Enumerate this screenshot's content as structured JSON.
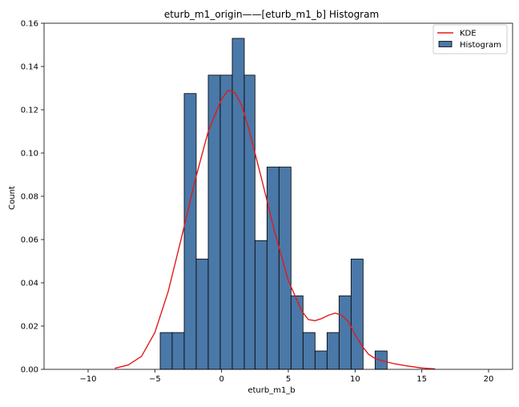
{
  "chart_data": {
    "type": "histogram",
    "title": "eturb_m1_origin——[eturb_m1_b] Histogram",
    "xlabel": "eturb_m1_b",
    "ylabel": "Count",
    "xlim": [
      -13.3,
      21.8
    ],
    "ylim": [
      0,
      0.16
    ],
    "grid": false,
    "legend_position": "top-right",
    "x_ticks": [
      -10,
      -5,
      0,
      5,
      10,
      15,
      20
    ],
    "x_tick_labels": [
      "−10",
      "−5",
      "0",
      "5",
      "10",
      "15",
      "20"
    ],
    "y_ticks": [
      0,
      0.02,
      0.04,
      0.06,
      0.08,
      0.1,
      0.12,
      0.14,
      0.16
    ],
    "y_tick_labels": [
      "0.00",
      "0.02",
      "0.04",
      "0.06",
      "0.08",
      "0.10",
      "0.12",
      "0.14",
      "0.16"
    ],
    "series": [
      {
        "name": "Histogram",
        "kind": "bars",
        "color": "#4a78a8",
        "edge_color": "#000000",
        "bin_edges": [
          -4.6,
          -3.7,
          -2.8,
          -1.9,
          -1.0,
          -0.1,
          0.8,
          1.7,
          2.5,
          3.4,
          4.3,
          5.2,
          6.1,
          7.0,
          7.9,
          8.8,
          9.7,
          10.6,
          11.5,
          12.4
        ],
        "values": [
          0.017,
          0.017,
          0.1275,
          0.051,
          0.136,
          0.136,
          0.153,
          0.136,
          0.0595,
          0.0935,
          0.0935,
          0.034,
          0.017,
          0.0085,
          0.017,
          0.034,
          0.051,
          0,
          0.0085
        ]
      },
      {
        "name": "KDE",
        "kind": "line",
        "color": "#e31a1c",
        "x": [
          -8.0,
          -7.0,
          -6.0,
          -5.0,
          -4.0,
          -3.0,
          -2.0,
          -1.0,
          0.0,
          0.5,
          1.0,
          1.5,
          2.0,
          3.0,
          4.0,
          5.0,
          6.0,
          6.5,
          7.0,
          7.5,
          8.0,
          8.5,
          9.0,
          9.5,
          10.0,
          10.5,
          11.0,
          11.5,
          12.0,
          13.0,
          14.0,
          15.0,
          16.0
        ],
        "y": [
          0.0005,
          0.002,
          0.006,
          0.017,
          0.036,
          0.061,
          0.087,
          0.11,
          0.125,
          0.129,
          0.128,
          0.122,
          0.112,
          0.088,
          0.063,
          0.041,
          0.027,
          0.023,
          0.0225,
          0.0235,
          0.025,
          0.026,
          0.025,
          0.022,
          0.016,
          0.011,
          0.007,
          0.005,
          0.004,
          0.0025,
          0.0015,
          0.0006,
          0.0002
        ]
      }
    ]
  }
}
